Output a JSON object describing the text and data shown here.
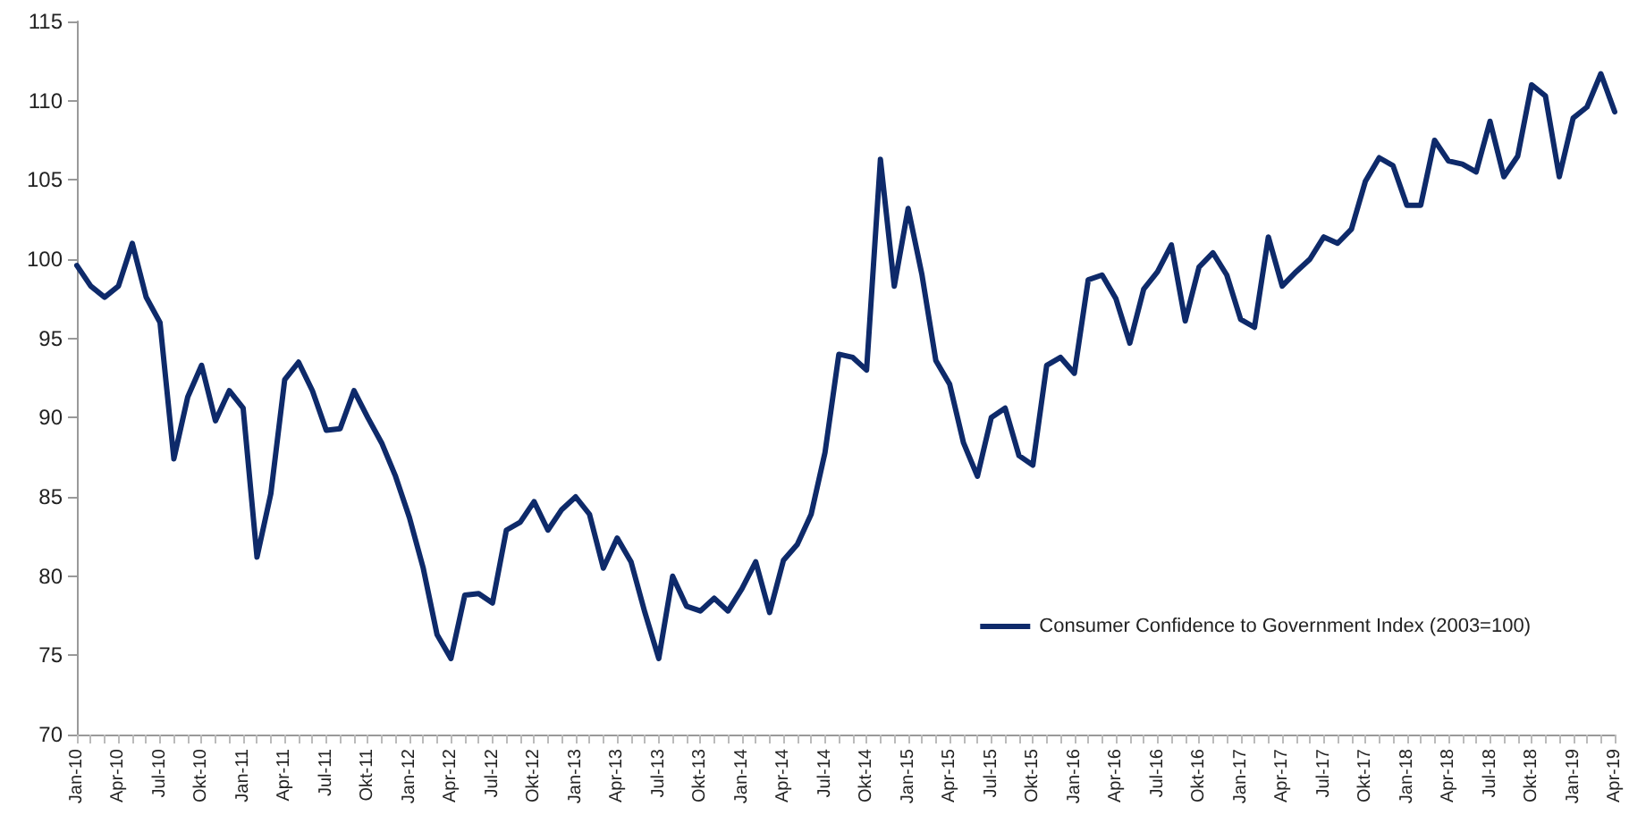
{
  "chart_data": {
    "type": "line",
    "categories": [
      "Jan-10",
      null,
      null,
      "Apr-10",
      null,
      null,
      "Jul-10",
      null,
      null,
      "Okt-10",
      null,
      null,
      "Jan-11",
      null,
      null,
      "Apr-11",
      null,
      null,
      "Jul-11",
      null,
      null,
      "Okt-11",
      null,
      null,
      "Jan-12",
      null,
      null,
      "Apr-12",
      null,
      null,
      "Jul-12",
      null,
      null,
      "Okt-12",
      null,
      null,
      "Jan-13",
      null,
      null,
      "Apr-13",
      null,
      null,
      "Jul-13",
      null,
      null,
      "Okt-13",
      null,
      null,
      "Jan-14",
      null,
      null,
      "Apr-14",
      null,
      null,
      "Jul-14",
      null,
      null,
      "Okt-14",
      null,
      null,
      "Jan-15",
      null,
      null,
      "Apr-15",
      null,
      null,
      "Jul-15",
      null,
      null,
      "Okt-15",
      null,
      null,
      "Jan-16",
      null,
      null,
      "Apr-16",
      null,
      null,
      "Jul-16",
      null,
      null,
      "Okt-16",
      null,
      null,
      "Jan-17",
      null,
      null,
      "Apr-17",
      null,
      null,
      "Jul-17",
      null,
      null,
      "Okt-17",
      null,
      null,
      "Jan-18",
      null,
      null,
      "Apr-18",
      null,
      null,
      "Jul-18",
      null,
      null,
      "Okt-18",
      null,
      null,
      "Jan-19",
      null,
      null,
      "Apr-19"
    ],
    "series": [
      {
        "name": "Consumer Confidence to Government Index (2003=100)",
        "color": "#0e2a6a",
        "values": [
          99.6,
          98.3,
          97.6,
          98.3,
          101.0,
          97.6,
          96.0,
          87.4,
          91.3,
          93.3,
          89.8,
          91.7,
          90.6,
          81.2,
          85.2,
          92.4,
          93.5,
          91.7,
          89.2,
          89.3,
          91.7,
          90.0,
          88.4,
          86.3,
          83.7,
          80.5,
          76.3,
          74.8,
          78.8,
          78.9,
          78.3,
          82.9,
          83.4,
          84.7,
          82.9,
          84.2,
          85.0,
          83.9,
          80.5,
          82.4,
          80.9,
          77.7,
          74.8,
          80.0,
          78.1,
          77.8,
          78.6,
          77.8,
          79.2,
          80.9,
          77.7,
          81.0,
          82.0,
          83.9,
          87.8,
          94.0,
          93.8,
          93.0,
          106.3,
          98.3,
          103.2,
          99.0,
          93.6,
          92.1,
          88.4,
          86.3,
          90.0,
          90.6,
          87.6,
          87.0,
          93.3,
          93.8,
          92.8,
          98.7,
          99.0,
          97.5,
          94.7,
          98.1,
          99.2,
          100.9,
          96.1,
          99.5,
          100.4,
          99.0,
          96.2,
          95.7,
          101.4,
          98.3,
          99.2,
          100.0,
          101.4,
          101.0,
          101.9,
          104.9,
          106.4,
          105.9,
          103.4,
          103.4,
          107.5,
          106.2,
          106.0,
          105.5,
          108.7,
          105.2,
          106.5,
          111.0,
          110.3,
          105.2,
          108.9,
          109.6,
          111.7,
          109.3
        ]
      }
    ],
    "ylim": [
      70,
      115
    ],
    "yticks": [
      70,
      75,
      80,
      85,
      90,
      95,
      100,
      105,
      110,
      115
    ],
    "grid": false,
    "legend": "bottom right",
    "marker": "none",
    "line_style": "solid"
  }
}
